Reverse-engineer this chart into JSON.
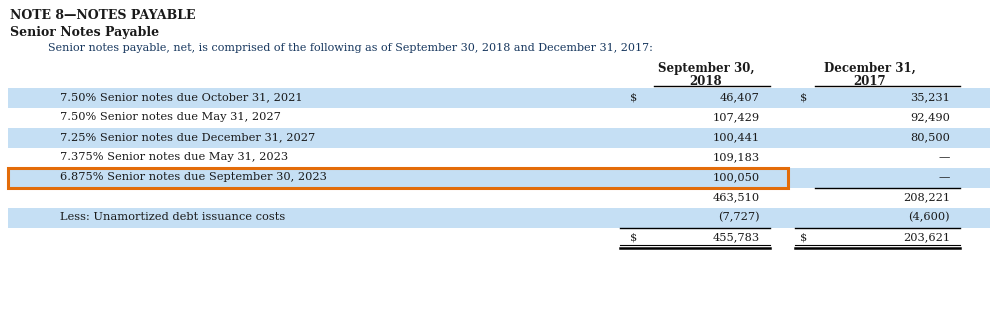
{
  "title1": "NOTE 8—NOTES PAYABLE",
  "title2": "Senior Notes Payable",
  "subtitle": "Senior notes payable, net, is comprised of the following as of September 30, 2018 and December 31, 2017:",
  "rows": [
    {
      "label": "7.50% Senior notes due October 31, 2021",
      "sep2018": "46,407",
      "dec2017": "35,231",
      "bg": "blue",
      "dollar_row": true,
      "subtotal": false,
      "total": false,
      "orange": false
    },
    {
      "label": "7.50% Senior notes due May 31, 2027",
      "sep2018": "107,429",
      "dec2017": "92,490",
      "bg": "white",
      "dollar_row": false,
      "subtotal": false,
      "total": false,
      "orange": false
    },
    {
      "label": "7.25% Senior notes due December 31, 2027",
      "sep2018": "100,441",
      "dec2017": "80,500",
      "bg": "blue",
      "dollar_row": false,
      "subtotal": false,
      "total": false,
      "orange": false
    },
    {
      "label": "7.375% Senior notes due May 31, 2023",
      "sep2018": "109,183",
      "dec2017": "—",
      "bg": "white",
      "dollar_row": false,
      "subtotal": false,
      "total": false,
      "orange": false
    },
    {
      "label": "6.875% Senior notes due September 30, 2023",
      "sep2018": "100,050",
      "dec2017": "—",
      "bg": "blue",
      "dollar_row": false,
      "subtotal": false,
      "total": false,
      "orange": true
    },
    {
      "label": "",
      "sep2018": "463,510",
      "dec2017": "208,221",
      "bg": "white",
      "dollar_row": false,
      "subtotal": true,
      "total": false,
      "orange": false
    },
    {
      "label": "Less: Unamortized debt issuance costs",
      "sep2018": "(7,727)",
      "dec2017": "(4,600)",
      "bg": "blue",
      "dollar_row": false,
      "subtotal": false,
      "total": false,
      "orange": false
    },
    {
      "label": "",
      "sep2018": "455,783",
      "dec2017": "203,621",
      "bg": "white",
      "dollar_row": true,
      "subtotal": false,
      "total": true,
      "orange": false
    }
  ],
  "bg_color": "#ffffff",
  "row_bg_blue": "#c5dff4",
  "row_bg_white": "#ffffff",
  "text_dark": "#1a1a1a",
  "text_blue_title": "#1f3864",
  "text_blue_sub": "#17375e",
  "orange_color": "#e36c09",
  "col1_header": "September 30,\n2018",
  "col2_header": "December 31,\n2017"
}
